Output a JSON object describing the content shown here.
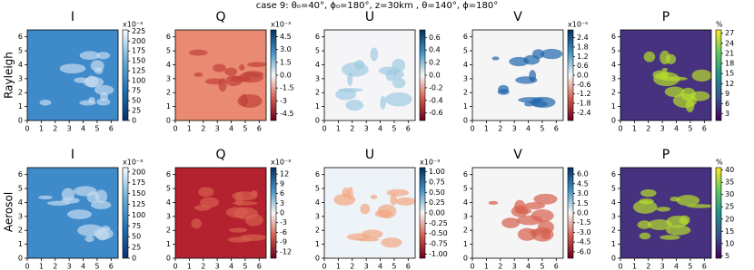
{
  "title": "case 9:  θ₀=40°, ϕ₀=180°, z=30km , θ=140°, ϕ=180°",
  "row_labels": [
    "Rayleigh",
    "Aerosol"
  ],
  "chart_data": [
    {
      "type": "heatmap",
      "title": "I",
      "xlim": [
        0,
        6.5
      ],
      "xticks": [
        0,
        1,
        2,
        3,
        4,
        5,
        6
      ],
      "ylim": [
        0,
        6.5
      ],
      "yticks": [
        0,
        1,
        2,
        3,
        4,
        5,
        6
      ],
      "clim": [
        0,
        228
      ],
      "cticks": [
        0,
        25,
        50,
        75,
        100,
        125,
        150,
        175,
        200,
        225
      ],
      "colorbar_label": "x10⁻³",
      "colors": [
        "#08306b",
        "#2171b5",
        "#6baed6",
        "#f7fbff"
      ]
    },
    {
      "type": "heatmap",
      "title": "Q",
      "xlim": [
        0,
        6.5
      ],
      "xticks": [
        0,
        1,
        2,
        3,
        4,
        5,
        6
      ],
      "ylim": [
        0,
        6.5
      ],
      "yticks": [
        0,
        1,
        2,
        3,
        4,
        5,
        6
      ],
      "clim": [
        -5.3,
        5.3
      ],
      "cticks": [
        -4.5,
        -3,
        -1.5,
        {
          "value": 0,
          "label": "0.0"
        },
        1.5,
        {
          "value": 3,
          "label": "3.0"
        },
        4.5
      ],
      "colorbar_label": "x10⁻³",
      "colors": [
        "#67001f",
        "#d6604d",
        "#f7f7f7",
        "#4393c3",
        "#053061"
      ]
    },
    {
      "type": "heatmap",
      "title": "U",
      "xlim": [
        0,
        6.5
      ],
      "xticks": [
        0,
        1,
        2,
        3,
        4,
        5,
        6
      ],
      "ylim": [
        0,
        6.5
      ],
      "yticks": [
        0,
        1,
        2,
        3,
        4,
        5,
        6
      ],
      "clim": [
        -0.72,
        0.72
      ],
      "cticks": [
        -0.6,
        -0.4,
        -0.2,
        {
          "value": 0,
          "label": "0.0"
        },
        0.2,
        0.4,
        0.6
      ],
      "colors": [
        "#67001f",
        "#d6604d",
        "#f7f7f7",
        "#4393c3",
        "#053061"
      ]
    },
    {
      "type": "heatmap",
      "title": "V",
      "xlim": [
        0,
        6.5
      ],
      "xticks": [
        0,
        1,
        2,
        3,
        4,
        5,
        6
      ],
      "ylim": [
        0,
        6.5
      ],
      "yticks": [
        0,
        1,
        2,
        3,
        4,
        5,
        6
      ],
      "clim": [
        -2.9,
        2.9
      ],
      "cticks": [
        -2.4,
        -1.8,
        -1.2,
        -0.6,
        {
          "value": 0,
          "label": "0.0"
        },
        0.6,
        1.2,
        1.8,
        2.4
      ],
      "colorbar_label": "x10⁻⁵",
      "colors": [
        "#67001f",
        "#d6604d",
        "#f7f7f7",
        "#4393c3",
        "#053061"
      ]
    },
    {
      "type": "heatmap",
      "title": "P",
      "xlim": [
        0,
        6.5
      ],
      "xticks": [
        0,
        1,
        2,
        3,
        4,
        5,
        6
      ],
      "ylim": [
        0,
        6.5
      ],
      "yticks": [
        0,
        1,
        2,
        3,
        4,
        5,
        6
      ],
      "clim": [
        1,
        28
      ],
      "cticks": [
        3,
        6,
        9,
        12,
        15,
        18,
        21,
        24,
        27
      ],
      "colorbar_label": "%",
      "colors": [
        "#440154",
        "#3b528b",
        "#21918c",
        "#5ec962",
        "#fde725"
      ]
    },
    {
      "type": "heatmap",
      "title": "I",
      "xlim": [
        0,
        6.5
      ],
      "xticks": [
        0,
        1,
        2,
        3,
        4,
        5,
        6
      ],
      "ylim": [
        0,
        6.5
      ],
      "yticks": [
        0,
        1,
        2,
        3,
        4,
        5,
        6
      ],
      "clim": [
        0,
        210
      ],
      "cticks": [
        0,
        25,
        50,
        75,
        100,
        125,
        150,
        175,
        200
      ],
      "colorbar_label": "x10⁻³",
      "colors": [
        "#08306b",
        "#2171b5",
        "#6baed6",
        "#f7fbff"
      ]
    },
    {
      "type": "heatmap",
      "title": "Q",
      "xlim": [
        0,
        6.5
      ],
      "xticks": [
        0,
        1,
        2,
        3,
        4,
        5,
        6
      ],
      "ylim": [
        0,
        6.5
      ],
      "yticks": [
        0,
        1,
        2,
        3,
        4,
        5,
        6
      ],
      "clim": [
        -14,
        14
      ],
      "cticks": [
        -12,
        -9,
        -6,
        -3,
        0,
        3,
        6,
        9,
        12
      ],
      "colorbar_label": "x10⁻³",
      "colors": [
        "#67001f",
        "#d6604d",
        "#f7f7f7",
        "#4393c3",
        "#053061"
      ]
    },
    {
      "type": "heatmap",
      "title": "U",
      "xlim": [
        0,
        6.5
      ],
      "xticks": [
        0,
        1,
        2,
        3,
        4,
        5,
        6
      ],
      "ylim": [
        0,
        6.5
      ],
      "yticks": [
        0,
        1,
        2,
        3,
        4,
        5,
        6
      ],
      "clim": [
        -1.1,
        1.1
      ],
      "cticks": [
        {
          "value": -1,
          "label": "-1.00"
        },
        -0.75,
        {
          "value": -0.5,
          "label": "-0.50"
        },
        -0.25,
        {
          "value": 0,
          "label": "0.00"
        },
        0.25,
        {
          "value": 0.5,
          "label": "0.50"
        },
        0.75,
        {
          "value": 1,
          "label": "1.00"
        }
      ],
      "colorbar_label": "x10⁻³",
      "colors": [
        "#67001f",
        "#d6604d",
        "#f7f7f7",
        "#4393c3",
        "#053061"
      ]
    },
    {
      "type": "heatmap",
      "title": "V",
      "xlim": [
        0,
        6.5
      ],
      "xticks": [
        0,
        1,
        2,
        3,
        4,
        5,
        6
      ],
      "ylim": [
        0,
        6.5
      ],
      "yticks": [
        0,
        1,
        2,
        3,
        4,
        5,
        6
      ],
      "clim": [
        -7,
        7
      ],
      "cticks": [
        {
          "value": -6,
          "label": "-6.0"
        },
        -4.5,
        {
          "value": -3,
          "label": "-3.0"
        },
        -1.5,
        {
          "value": 0,
          "label": "0.0"
        },
        1.5,
        {
          "value": 3,
          "label": "3.0"
        },
        4.5,
        {
          "value": 6,
          "label": "6.0"
        }
      ],
      "colors": [
        "#67001f",
        "#d6604d",
        "#f7f7f7",
        "#4393c3",
        "#053061"
      ]
    },
    {
      "type": "heatmap",
      "title": "P",
      "xlim": [
        0,
        6.5
      ],
      "xticks": [
        0,
        1,
        2,
        3,
        4,
        5,
        6
      ],
      "ylim": [
        0,
        6.5
      ],
      "yticks": [
        0,
        1,
        2,
        3,
        4,
        5,
        6
      ],
      "clim": [
        4,
        41
      ],
      "cticks": [
        5,
        10,
        15,
        20,
        25,
        30,
        35,
        40
      ],
      "colorbar_label": "%",
      "colors": [
        "#440154",
        "#3b528b",
        "#21918c",
        "#5ec962",
        "#fde725"
      ]
    }
  ]
}
